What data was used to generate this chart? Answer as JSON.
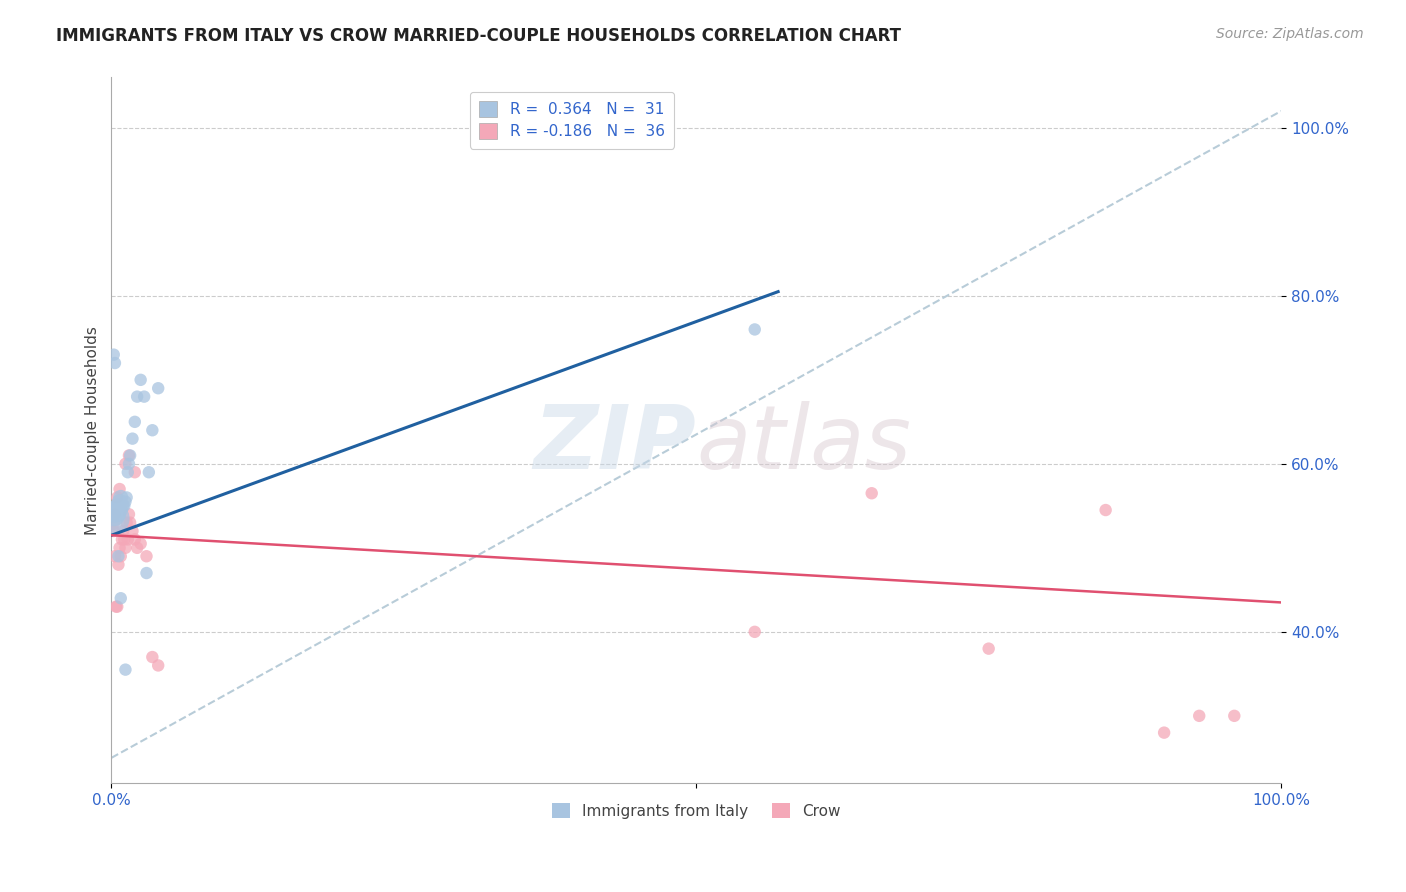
{
  "title": "IMMIGRANTS FROM ITALY VS CROW MARRIED-COUPLE HOUSEHOLDS CORRELATION CHART",
  "source": "Source: ZipAtlas.com",
  "ylabel": "Married-couple Households",
  "legend_label1": "Immigrants from Italy",
  "legend_label2": "Crow",
  "legend_r1": "R =  0.364",
  "legend_n1": "N =  31",
  "legend_r2": "R = -0.186",
  "legend_n2": "N =  36",
  "watermark": "ZIPatlas",
  "blue_x": [
    0.001,
    0.002,
    0.003,
    0.004,
    0.005,
    0.006,
    0.007,
    0.008,
    0.009,
    0.01,
    0.011,
    0.012,
    0.013,
    0.014,
    0.015,
    0.016,
    0.018,
    0.02,
    0.022,
    0.025,
    0.028,
    0.03,
    0.032,
    0.035,
    0.04,
    0.002,
    0.003,
    0.006,
    0.008,
    0.012,
    0.55
  ],
  "blue_y": [
    0.535,
    0.54,
    0.54,
    0.545,
    0.55,
    0.54,
    0.555,
    0.56,
    0.545,
    0.55,
    0.55,
    0.555,
    0.56,
    0.59,
    0.6,
    0.61,
    0.63,
    0.65,
    0.68,
    0.7,
    0.68,
    0.47,
    0.59,
    0.64,
    0.69,
    0.73,
    0.72,
    0.49,
    0.44,
    0.355,
    0.76
  ],
  "blue_size": [
    600,
    300,
    150,
    150,
    120,
    120,
    120,
    120,
    80,
    80,
    80,
    80,
    80,
    80,
    80,
    80,
    80,
    80,
    80,
    80,
    80,
    80,
    80,
    80,
    80,
    80,
    80,
    80,
    80,
    80,
    80
  ],
  "pink_x": [
    0.001,
    0.002,
    0.003,
    0.004,
    0.005,
    0.006,
    0.007,
    0.008,
    0.009,
    0.01,
    0.011,
    0.012,
    0.013,
    0.014,
    0.015,
    0.016,
    0.018,
    0.02,
    0.022,
    0.025,
    0.03,
    0.035,
    0.04,
    0.003,
    0.005,
    0.007,
    0.012,
    0.015,
    0.02,
    0.55,
    0.65,
    0.75,
    0.85,
    0.9,
    0.93,
    0.96
  ],
  "pink_y": [
    0.53,
    0.52,
    0.49,
    0.43,
    0.43,
    0.48,
    0.5,
    0.49,
    0.51,
    0.52,
    0.51,
    0.5,
    0.53,
    0.51,
    0.54,
    0.53,
    0.52,
    0.51,
    0.5,
    0.505,
    0.49,
    0.37,
    0.36,
    0.54,
    0.56,
    0.57,
    0.6,
    0.61,
    0.59,
    0.4,
    0.565,
    0.38,
    0.545,
    0.28,
    0.3,
    0.3
  ],
  "pink_size": [
    120,
    80,
    80,
    80,
    80,
    80,
    80,
    80,
    80,
    80,
    80,
    80,
    80,
    80,
    80,
    80,
    80,
    80,
    80,
    80,
    80,
    80,
    80,
    80,
    80,
    80,
    80,
    80,
    80,
    80,
    80,
    80,
    80,
    80,
    80,
    80
  ],
  "blue_color": "#a8c4e0",
  "pink_color": "#f4a8b8",
  "blue_line_color": "#2060a0",
  "pink_line_color": "#e05070",
  "dashed_line_color": "#b8ccd8",
  "blue_trend_x": [
    0.0,
    0.57
  ],
  "blue_trend_y": [
    0.515,
    0.805
  ],
  "pink_trend_x": [
    0.0,
    1.0
  ],
  "pink_trend_y": [
    0.515,
    0.435
  ],
  "dashed_trend_x": [
    0.0,
    1.0
  ],
  "dashed_trend_y": [
    0.25,
    1.02
  ],
  "xlim": [
    0.0,
    1.0
  ],
  "ylim": [
    0.22,
    1.06
  ],
  "yticks": [
    0.4,
    0.6,
    0.8,
    1.0
  ],
  "ytick_labels": [
    "40.0%",
    "60.0%",
    "80.0%",
    "100.0%"
  ],
  "xticks": [
    0.0,
    0.5,
    1.0
  ],
  "xtick_labels": [
    "0.0%",
    "",
    "100.0%"
  ],
  "bg_color": "#ffffff",
  "grid_color": "#cccccc",
  "title_fontsize": 12,
  "source_fontsize": 10,
  "tick_fontsize": 11,
  "legend_fontsize": 11,
  "ylabel_fontsize": 11
}
